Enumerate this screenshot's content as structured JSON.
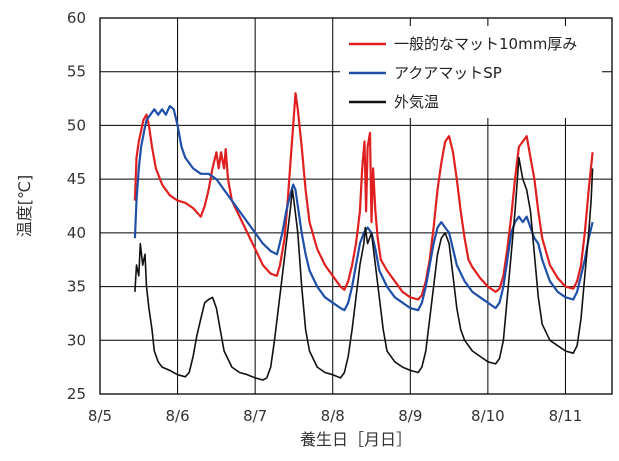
{
  "chart_data": {
    "type": "line",
    "title": "",
    "xlabel": "養生日［月日］",
    "ylabel": "温度[℃]",
    "ylim": [
      25,
      60
    ],
    "xlim": [
      0,
      6.6
    ],
    "x_ticks": [
      {
        "v": 0,
        "label": "8/5"
      },
      {
        "v": 1,
        "label": "8/6"
      },
      {
        "v": 2,
        "label": "8/7"
      },
      {
        "v": 3,
        "label": "8/8"
      },
      {
        "v": 4,
        "label": "8/9"
      },
      {
        "v": 5,
        "label": "8/10"
      },
      {
        "v": 6,
        "label": "8/11"
      }
    ],
    "y_ticks": [
      25,
      30,
      35,
      40,
      45,
      50,
      55,
      60
    ],
    "x_unit_note": "x values are days elapsed since 8/5 00:00",
    "grid": true,
    "legend_position": "top-right",
    "colors": {
      "mat10": "#e02020",
      "aqua": "#1f4fa8",
      "outside": "#111111"
    },
    "series": [
      {
        "name": "一般的なマット10mm厚み",
        "color": "#e02020",
        "points": [
          [
            0.45,
            43
          ],
          [
            0.47,
            47
          ],
          [
            0.5,
            48.5
          ],
          [
            0.53,
            49.5
          ],
          [
            0.56,
            50.5
          ],
          [
            0.6,
            51
          ],
          [
            0.63,
            50
          ],
          [
            0.67,
            48
          ],
          [
            0.72,
            46
          ],
          [
            0.8,
            44.5
          ],
          [
            0.9,
            43.5
          ],
          [
            1.0,
            43
          ],
          [
            1.1,
            42.8
          ],
          [
            1.2,
            42.3
          ],
          [
            1.3,
            41.5
          ],
          [
            1.35,
            42.5
          ],
          [
            1.4,
            44
          ],
          [
            1.45,
            46
          ],
          [
            1.5,
            47.5
          ],
          [
            1.53,
            46
          ],
          [
            1.56,
            47.5
          ],
          [
            1.6,
            46
          ],
          [
            1.62,
            47.8
          ],
          [
            1.65,
            45
          ],
          [
            1.7,
            43
          ],
          [
            1.8,
            41.5
          ],
          [
            1.9,
            40
          ],
          [
            2.0,
            38.5
          ],
          [
            2.1,
            37
          ],
          [
            2.2,
            36.2
          ],
          [
            2.28,
            36
          ],
          [
            2.32,
            37
          ],
          [
            2.38,
            39.5
          ],
          [
            2.42,
            43
          ],
          [
            2.46,
            47
          ],
          [
            2.49,
            50
          ],
          [
            2.52,
            53
          ],
          [
            2.55,
            51.5
          ],
          [
            2.6,
            48
          ],
          [
            2.65,
            44
          ],
          [
            2.7,
            41
          ],
          [
            2.8,
            38.5
          ],
          [
            2.9,
            37
          ],
          [
            3.0,
            36
          ],
          [
            3.1,
            35
          ],
          [
            3.15,
            34.7
          ],
          [
            3.2,
            35.5
          ],
          [
            3.25,
            37
          ],
          [
            3.3,
            39
          ],
          [
            3.35,
            42
          ],
          [
            3.38,
            46
          ],
          [
            3.41,
            48.5
          ],
          [
            3.43,
            42
          ],
          [
            3.45,
            48
          ],
          [
            3.48,
            49.3
          ],
          [
            3.5,
            41
          ],
          [
            3.52,
            46
          ],
          [
            3.55,
            42
          ],
          [
            3.58,
            39.5
          ],
          [
            3.62,
            37.5
          ],
          [
            3.7,
            36.5
          ],
          [
            3.8,
            35.5
          ],
          [
            3.9,
            34.5
          ],
          [
            4.0,
            34
          ],
          [
            4.1,
            33.8
          ],
          [
            4.15,
            34.2
          ],
          [
            4.2,
            35.5
          ],
          [
            4.25,
            37.5
          ],
          [
            4.3,
            40.5
          ],
          [
            4.35,
            44
          ],
          [
            4.4,
            46.5
          ],
          [
            4.45,
            48.5
          ],
          [
            4.5,
            49
          ],
          [
            4.55,
            47.5
          ],
          [
            4.6,
            45
          ],
          [
            4.65,
            42
          ],
          [
            4.7,
            39.5
          ],
          [
            4.75,
            37.5
          ],
          [
            4.8,
            36.8
          ],
          [
            4.9,
            35.8
          ],
          [
            5.0,
            35
          ],
          [
            5.1,
            34.5
          ],
          [
            5.15,
            34.8
          ],
          [
            5.2,
            36
          ],
          [
            5.25,
            38.5
          ],
          [
            5.3,
            41.5
          ],
          [
            5.35,
            45
          ],
          [
            5.4,
            48
          ],
          [
            5.45,
            48.5
          ],
          [
            5.5,
            49
          ],
          [
            5.55,
            47
          ],
          [
            5.6,
            45
          ],
          [
            5.65,
            42
          ],
          [
            5.7,
            39.5
          ],
          [
            5.8,
            37
          ],
          [
            5.9,
            35.8
          ],
          [
            6.0,
            35
          ],
          [
            6.1,
            34.8
          ],
          [
            6.15,
            35.5
          ],
          [
            6.2,
            37
          ],
          [
            6.25,
            40
          ],
          [
            6.3,
            44
          ],
          [
            6.35,
            47.5
          ]
        ]
      },
      {
        "name": "アクアマットSP",
        "color": "#1f4fa8",
        "points": [
          [
            0.45,
            39.5
          ],
          [
            0.47,
            43
          ],
          [
            0.5,
            46
          ],
          [
            0.53,
            48
          ],
          [
            0.57,
            49.5
          ],
          [
            0.6,
            50.5
          ],
          [
            0.65,
            51
          ],
          [
            0.7,
            51.5
          ],
          [
            0.75,
            51
          ],
          [
            0.8,
            51.5
          ],
          [
            0.85,
            51
          ],
          [
            0.9,
            51.8
          ],
          [
            0.95,
            51.5
          ],
          [
            1.0,
            50
          ],
          [
            1.05,
            48
          ],
          [
            1.1,
            47
          ],
          [
            1.15,
            46.5
          ],
          [
            1.2,
            46
          ],
          [
            1.3,
            45.5
          ],
          [
            1.4,
            45.5
          ],
          [
            1.5,
            45
          ],
          [
            1.6,
            44
          ],
          [
            1.7,
            43
          ],
          [
            1.8,
            42
          ],
          [
            1.9,
            41
          ],
          [
            2.0,
            40
          ],
          [
            2.1,
            39
          ],
          [
            2.2,
            38.3
          ],
          [
            2.28,
            38
          ],
          [
            2.3,
            38.5
          ],
          [
            2.35,
            40
          ],
          [
            2.4,
            42
          ],
          [
            2.45,
            43.5
          ],
          [
            2.49,
            44.5
          ],
          [
            2.52,
            44
          ],
          [
            2.55,
            42.5
          ],
          [
            2.6,
            40
          ],
          [
            2.65,
            38
          ],
          [
            2.7,
            36.5
          ],
          [
            2.8,
            35
          ],
          [
            2.9,
            34
          ],
          [
            3.0,
            33.5
          ],
          [
            3.1,
            33
          ],
          [
            3.15,
            32.8
          ],
          [
            3.2,
            33.5
          ],
          [
            3.25,
            35
          ],
          [
            3.3,
            37
          ],
          [
            3.35,
            39
          ],
          [
            3.4,
            40
          ],
          [
            3.45,
            40.5
          ],
          [
            3.5,
            40
          ],
          [
            3.55,
            38.5
          ],
          [
            3.6,
            36.5
          ],
          [
            3.7,
            35
          ],
          [
            3.8,
            34
          ],
          [
            3.9,
            33.5
          ],
          [
            4.0,
            33
          ],
          [
            4.1,
            32.8
          ],
          [
            4.15,
            33.5
          ],
          [
            4.2,
            35
          ],
          [
            4.25,
            37
          ],
          [
            4.3,
            39
          ],
          [
            4.35,
            40.5
          ],
          [
            4.4,
            41
          ],
          [
            4.45,
            40.5
          ],
          [
            4.5,
            40
          ],
          [
            4.55,
            38.5
          ],
          [
            4.6,
            37
          ],
          [
            4.7,
            35.5
          ],
          [
            4.8,
            34.5
          ],
          [
            4.9,
            34
          ],
          [
            5.0,
            33.5
          ],
          [
            5.1,
            33
          ],
          [
            5.15,
            33.5
          ],
          [
            5.2,
            35
          ],
          [
            5.25,
            37.5
          ],
          [
            5.3,
            40
          ],
          [
            5.35,
            41
          ],
          [
            5.4,
            41.5
          ],
          [
            5.45,
            41
          ],
          [
            5.5,
            41.5
          ],
          [
            5.55,
            40.5
          ],
          [
            5.6,
            39.5
          ],
          [
            5.65,
            39
          ],
          [
            5.7,
            37.5
          ],
          [
            5.8,
            35.5
          ],
          [
            5.9,
            34.5
          ],
          [
            6.0,
            34
          ],
          [
            6.1,
            33.8
          ],
          [
            6.15,
            34.5
          ],
          [
            6.2,
            36
          ],
          [
            6.25,
            37.5
          ],
          [
            6.3,
            39.5
          ],
          [
            6.35,
            41
          ]
        ]
      },
      {
        "name": "外気温",
        "color": "#111111",
        "points": [
          [
            0.45,
            34.5
          ],
          [
            0.47,
            37
          ],
          [
            0.5,
            36
          ],
          [
            0.52,
            39
          ],
          [
            0.55,
            37
          ],
          [
            0.58,
            38
          ],
          [
            0.6,
            35
          ],
          [
            0.63,
            33
          ],
          [
            0.67,
            31
          ],
          [
            0.7,
            29
          ],
          [
            0.75,
            28
          ],
          [
            0.8,
            27.5
          ],
          [
            0.9,
            27.2
          ],
          [
            1.0,
            26.8
          ],
          [
            1.1,
            26.6
          ],
          [
            1.15,
            27
          ],
          [
            1.2,
            28.5
          ],
          [
            1.25,
            30.5
          ],
          [
            1.3,
            32
          ],
          [
            1.35,
            33.5
          ],
          [
            1.4,
            33.8
          ],
          [
            1.45,
            34
          ],
          [
            1.5,
            33
          ],
          [
            1.55,
            31
          ],
          [
            1.6,
            29
          ],
          [
            1.7,
            27.5
          ],
          [
            1.8,
            27
          ],
          [
            1.9,
            26.8
          ],
          [
            2.0,
            26.5
          ],
          [
            2.1,
            26.3
          ],
          [
            2.15,
            26.5
          ],
          [
            2.2,
            27.5
          ],
          [
            2.25,
            30
          ],
          [
            2.3,
            33
          ],
          [
            2.35,
            36
          ],
          [
            2.4,
            39
          ],
          [
            2.45,
            42
          ],
          [
            2.48,
            44
          ],
          [
            2.5,
            43
          ],
          [
            2.55,
            40
          ],
          [
            2.6,
            35
          ],
          [
            2.65,
            31
          ],
          [
            2.7,
            29
          ],
          [
            2.8,
            27.5
          ],
          [
            2.9,
            27
          ],
          [
            3.0,
            26.8
          ],
          [
            3.1,
            26.5
          ],
          [
            3.15,
            27
          ],
          [
            3.2,
            28.5
          ],
          [
            3.25,
            31
          ],
          [
            3.3,
            34
          ],
          [
            3.35,
            37
          ],
          [
            3.4,
            39
          ],
          [
            3.42,
            40.5
          ],
          [
            3.45,
            39
          ],
          [
            3.5,
            40
          ],
          [
            3.55,
            37
          ],
          [
            3.6,
            34
          ],
          [
            3.65,
            31
          ],
          [
            3.7,
            29
          ],
          [
            3.8,
            28
          ],
          [
            3.9,
            27.5
          ],
          [
            4.0,
            27.2
          ],
          [
            4.1,
            27
          ],
          [
            4.15,
            27.5
          ],
          [
            4.2,
            29
          ],
          [
            4.25,
            32
          ],
          [
            4.3,
            35
          ],
          [
            4.35,
            38
          ],
          [
            4.4,
            39.5
          ],
          [
            4.45,
            40
          ],
          [
            4.5,
            39
          ],
          [
            4.55,
            36
          ],
          [
            4.6,
            33
          ],
          [
            4.65,
            31
          ],
          [
            4.7,
            30
          ],
          [
            4.8,
            29
          ],
          [
            4.9,
            28.5
          ],
          [
            5.0,
            28
          ],
          [
            5.1,
            27.8
          ],
          [
            5.15,
            28.3
          ],
          [
            5.2,
            30
          ],
          [
            5.25,
            34
          ],
          [
            5.3,
            38
          ],
          [
            5.35,
            42
          ],
          [
            5.38,
            45
          ],
          [
            5.4,
            47
          ],
          [
            5.45,
            45
          ],
          [
            5.5,
            44
          ],
          [
            5.55,
            42
          ],
          [
            5.6,
            38
          ],
          [
            5.65,
            34
          ],
          [
            5.7,
            31.5
          ],
          [
            5.8,
            30
          ],
          [
            5.9,
            29.5
          ],
          [
            6.0,
            29
          ],
          [
            6.1,
            28.8
          ],
          [
            6.15,
            29.5
          ],
          [
            6.2,
            32
          ],
          [
            6.25,
            36
          ],
          [
            6.3,
            40
          ],
          [
            6.33,
            43
          ],
          [
            6.35,
            46
          ]
        ]
      }
    ]
  }
}
